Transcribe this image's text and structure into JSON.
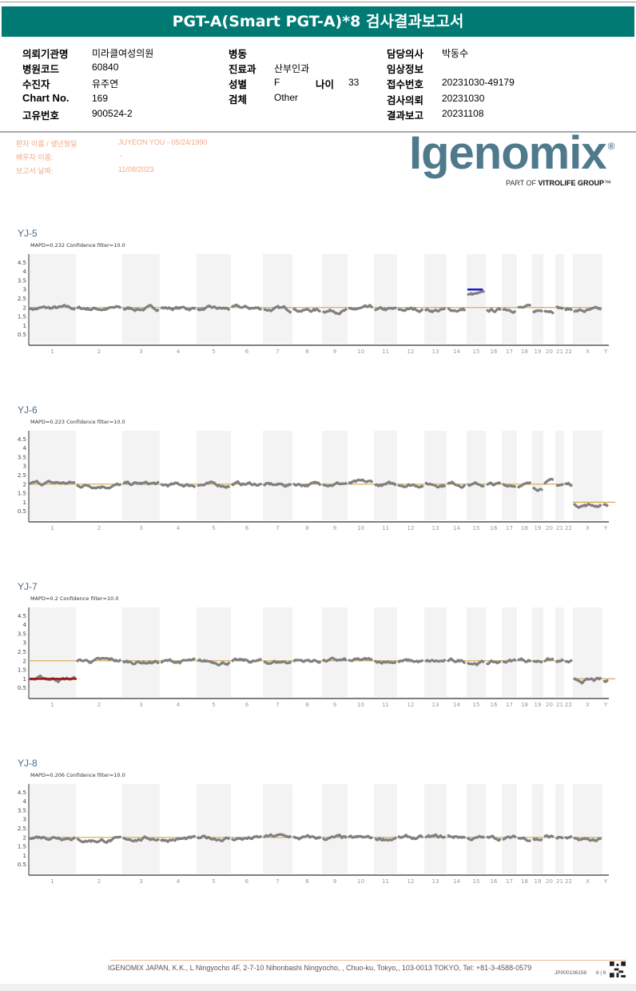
{
  "header": {
    "title": "PGT-A(Smart PGT-A)*8 검사결과보고서"
  },
  "info": {
    "col1": [
      {
        "label": "의뢰기관명",
        "value": "미라클여성의원"
      },
      {
        "label": "병원코드",
        "value": "60840"
      },
      {
        "label": "수진자",
        "value": "유주연"
      },
      {
        "label": "Chart No.",
        "value": "169"
      },
      {
        "label": "고유번호",
        "value": "900524-2"
      }
    ],
    "col2": [
      {
        "label": "병동",
        "value": ""
      },
      {
        "label": "진료과",
        "value": "산부인과"
      },
      {
        "label": "성별",
        "value": "F"
      },
      {
        "label": "검체",
        "value": "Other"
      }
    ],
    "age": {
      "label": "나이",
      "value": "33"
    },
    "col3": [
      {
        "label": "담당의사",
        "value": "박동수"
      },
      {
        "label": "임상정보",
        "value": ""
      },
      {
        "label": "접수번호",
        "value": "20231030-49179"
      },
      {
        "label": "검사의뢰",
        "value": "20231030"
      },
      {
        "label": "결과보고",
        "value": "20231108"
      }
    ]
  },
  "patient": {
    "name_label": "환자 이름 / 생년월일",
    "name_value": "JUYEON YOU - 05/24/1990",
    "partner_label": "배우자 이름:",
    "partner_value": "-",
    "date_label": "보고서 날짜:",
    "date_value": "11/08/2023"
  },
  "logo": {
    "brand": "Igenomix",
    "tagline_prefix": "PART OF ",
    "tagline_brand": "VITROLIFE GROUP",
    "tm": "™"
  },
  "footer": {
    "address": "IGENOMIX JAPAN, K.K., L Ningyocho 4F, 2-7-10 Nihonbashi Ningyocho, , Chuo-ku, Tokyo,, 103-0013 TOKYO, Tel: +81-3-4588-0579",
    "doc_id": "JP000136158",
    "page": "6 | 6"
  },
  "colors": {
    "trace": "#808080",
    "baseline": "#d4a94a",
    "gain": "#1a1acc",
    "loss": "#a01010",
    "band": "#f3f3f3"
  },
  "chart_data": [
    {
      "type": "scatter",
      "title": "YJ-5",
      "subtitle": "MAPD=0.232 Confidence filter=10.0",
      "categories": [
        "1",
        "2",
        "3",
        "4",
        "5",
        "6",
        "7",
        "8",
        "9",
        "10",
        "11",
        "12",
        "13",
        "14",
        "15",
        "16",
        "17",
        "18",
        "19",
        "20",
        "21",
        "22",
        "X",
        "Y"
      ],
      "yticks": [
        "0.5",
        "1",
        "1.5",
        "2",
        "2.5",
        "3",
        "3.5",
        "4",
        "4.5"
      ],
      "ylim": [
        0,
        5
      ],
      "copy_number": [
        1.95,
        1.95,
        1.95,
        1.95,
        1.9,
        1.95,
        1.9,
        1.85,
        1.85,
        1.9,
        1.85,
        1.9,
        1.85,
        1.9,
        2.7,
        1.85,
        1.95,
        1.95,
        1.85,
        1.9,
        1.95,
        1.9,
        1.8,
        null
      ],
      "expected": [
        2,
        2,
        2,
        2,
        2,
        2,
        2,
        2,
        2,
        2,
        2,
        2,
        2,
        2,
        2,
        2,
        2,
        2,
        2,
        2,
        2,
        2,
        2,
        null
      ],
      "calls": [
        {
          "chrom": "15",
          "value": 3,
          "kind": "gain",
          "fraction": 0.8
        }
      ]
    },
    {
      "type": "scatter",
      "title": "YJ-6",
      "subtitle": "MAPD=0.223 Confidence filter=10.0",
      "categories": [
        "1",
        "2",
        "3",
        "4",
        "5",
        "6",
        "7",
        "8",
        "9",
        "10",
        "11",
        "12",
        "13",
        "14",
        "15",
        "16",
        "17",
        "18",
        "19",
        "20",
        "21",
        "22",
        "X",
        "Y"
      ],
      "yticks": [
        "0.5",
        "1",
        "1.5",
        "2",
        "2.5",
        "3",
        "3.5",
        "4",
        "4.5"
      ],
      "ylim": [
        0,
        5
      ],
      "copy_number": [
        2.05,
        1.95,
        2.0,
        1.95,
        1.95,
        2.0,
        1.95,
        2.0,
        2.05,
        2.05,
        1.95,
        2.0,
        2.0,
        2.0,
        1.95,
        1.95,
        2.0,
        1.95,
        1.85,
        2.1,
        2.0,
        2.0,
        0.85,
        0.85
      ],
      "expected": [
        2,
        2,
        2,
        2,
        2,
        2,
        2,
        2,
        2,
        2,
        2,
        2,
        2,
        2,
        2,
        2,
        2,
        2,
        2,
        2,
        2,
        2,
        1,
        1
      ],
      "calls": []
    },
    {
      "type": "scatter",
      "title": "YJ-7",
      "subtitle": "MAPD=0.2 Confidence filter=10.0",
      "categories": [
        "1",
        "2",
        "3",
        "4",
        "5",
        "6",
        "7",
        "8",
        "9",
        "10",
        "11",
        "12",
        "13",
        "14",
        "15",
        "16",
        "17",
        "18",
        "19",
        "20",
        "21",
        "22",
        "X",
        "Y"
      ],
      "yticks": [
        "0.5",
        "1",
        "1.5",
        "2",
        "2.5",
        "3",
        "3.5",
        "4",
        "4.5"
      ],
      "ylim": [
        0,
        5
      ],
      "copy_number": [
        1.0,
        2.0,
        1.95,
        1.95,
        1.95,
        1.95,
        1.95,
        2.0,
        2.0,
        2.0,
        2.0,
        1.95,
        1.95,
        2.0,
        1.9,
        1.9,
        2.0,
        2.05,
        2.0,
        2.05,
        1.95,
        1.9,
        0.9,
        0.85
      ],
      "expected": [
        2,
        2,
        2,
        2,
        2,
        2,
        2,
        2,
        2,
        2,
        2,
        2,
        2,
        2,
        2,
        2,
        2,
        2,
        2,
        2,
        2,
        2,
        1,
        1
      ],
      "calls": [
        {
          "chrom": "1",
          "value": 1,
          "kind": "loss",
          "fraction": 1
        }
      ]
    },
    {
      "type": "scatter",
      "title": "YJ-8",
      "subtitle": "MAPD=0.206 Confidence filter=10.0",
      "categories": [
        "1",
        "2",
        "3",
        "4",
        "5",
        "6",
        "7",
        "8",
        "9",
        "10",
        "11",
        "12",
        "13",
        "14",
        "15",
        "16",
        "17",
        "18",
        "19",
        "20",
        "21",
        "22",
        "X",
        "Y"
      ],
      "yticks": [
        "0.5",
        "1",
        "1.5",
        "2",
        "2.5",
        "3",
        "3.5",
        "4",
        "4.5"
      ],
      "ylim": [
        0,
        5
      ],
      "copy_number": [
        2.05,
        1.85,
        1.95,
        1.9,
        1.95,
        1.95,
        2.05,
        1.95,
        1.95,
        1.95,
        1.95,
        1.95,
        2.0,
        2.05,
        1.95,
        1.95,
        1.95,
        1.95,
        1.9,
        2.0,
        2.0,
        1.95,
        1.85,
        null
      ],
      "expected": [
        2,
        2,
        2,
        2,
        2,
        2,
        2,
        2,
        2,
        2,
        2,
        2,
        2,
        2,
        2,
        2,
        2,
        2,
        2,
        2,
        2,
        2,
        2,
        null
      ],
      "calls": []
    }
  ]
}
